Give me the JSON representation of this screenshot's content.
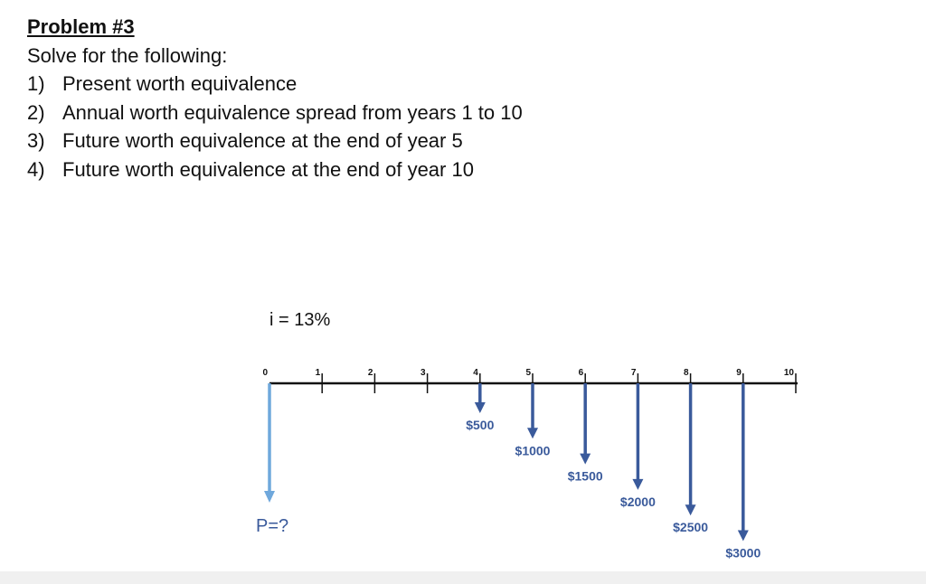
{
  "problem": {
    "title": "Problem #3",
    "prompt": "Solve for the following:",
    "items": [
      {
        "num": "1)",
        "text": "Present worth equivalence"
      },
      {
        "num": "2)",
        "text": "Annual worth equivalence spread from years 1 to 10"
      },
      {
        "num": "3)",
        "text": "Future worth equivalence at the end of year 5"
      },
      {
        "num": "4)",
        "text": "Future worth equivalence at the end of year 10"
      }
    ]
  },
  "cash_flow": {
    "rate_label": "i = 13%",
    "periods": [
      "0",
      "1",
      "2",
      "3",
      "4",
      "5",
      "6",
      "7",
      "8",
      "9",
      "10"
    ],
    "present": {
      "label": "P=?",
      "color": "#6fa8dc"
    },
    "flow_color": "#3a5a9b",
    "flows": [
      {
        "period": 4,
        "amount": 500,
        "label": "$500"
      },
      {
        "period": 5,
        "amount": 1000,
        "label": "$1000"
      },
      {
        "period": 6,
        "amount": 1500,
        "label": "$1500"
      },
      {
        "period": 7,
        "amount": 2000,
        "label": "$2000"
      },
      {
        "period": 8,
        "amount": 2500,
        "label": "$2500"
      },
      {
        "period": 9,
        "amount": 3000,
        "label": "$3000"
      }
    ]
  }
}
